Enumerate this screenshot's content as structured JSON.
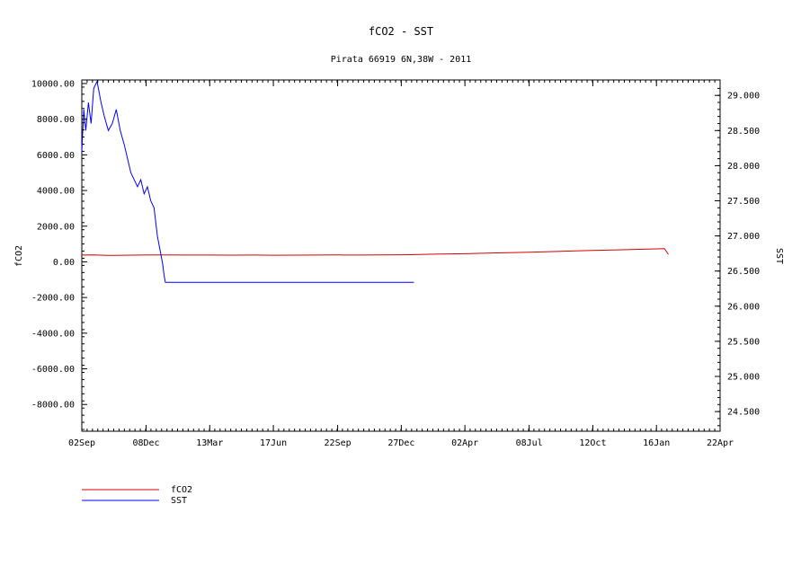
{
  "chart_data": {
    "type": "line",
    "title": "fCO2 - SST",
    "subtitle": "Pirata 66919 6N,38W - 2011",
    "xlabel": "",
    "ylabel_left": "fCO2",
    "ylabel_right": "SST",
    "x_tick_labels": [
      "02Sep",
      "08Dec",
      "13Mar",
      "17Jun",
      "22Sep",
      "27Dec",
      "02Apr",
      "08Jul",
      "12Oct",
      "16Jan",
      "22Apr"
    ],
    "x_tick_dates": [
      "2011-09-02",
      "2011-12-08",
      "2012-03-13",
      "2012-06-17",
      "2012-09-22",
      "2012-12-27",
      "2013-04-02",
      "2013-07-08",
      "2013-10-12",
      "2014-01-16",
      "2014-04-22"
    ],
    "xlim": [
      "2011-09-02",
      "2014-04-22"
    ],
    "ylim_left": [
      -9500,
      10200
    ],
    "yticks_left": [
      10000,
      8000,
      6000,
      4000,
      2000,
      0,
      -2000,
      -4000,
      -6000,
      -8000
    ],
    "ytick_labels_left": [
      "10000.00",
      "8000.00",
      "6000.00",
      "4000.00",
      "2000.00",
      "0.00",
      "-2000.00",
      "-4000.00",
      "-6000.00",
      "-8000.00"
    ],
    "ylim_right": [
      24.22,
      29.22
    ],
    "yticks_right": [
      29.0,
      28.5,
      28.0,
      27.5,
      27.0,
      26.5,
      26.0,
      25.5,
      25.0,
      24.5
    ],
    "ytick_labels_right": [
      "29.000",
      "28.500",
      "28.000",
      "27.500",
      "27.000",
      "26.500",
      "26.000",
      "25.500",
      "25.000",
      "24.500"
    ],
    "grid": false,
    "legend_position": "bottom-left",
    "series": [
      {
        "name": "fCO2",
        "axis": "left",
        "color": "#d40000",
        "x": [
          "2011-09-02",
          "2011-09-20",
          "2011-10-10",
          "2011-11-01",
          "2011-12-01",
          "2012-01-01",
          "2012-02-01",
          "2012-03-13",
          "2012-04-15",
          "2012-05-20",
          "2012-06-17",
          "2012-07-20",
          "2012-08-20",
          "2012-09-22",
          "2012-10-25",
          "2012-11-25",
          "2012-12-27",
          "2013-01-10",
          "2013-02-15",
          "2013-04-02",
          "2013-05-20",
          "2013-07-08",
          "2013-08-25",
          "2013-10-12",
          "2013-11-25",
          "2014-01-16",
          "2014-01-28",
          "2014-02-03"
        ],
        "y": [
          380,
          390,
          360,
          370,
          380,
          385,
          380,
          380,
          375,
          380,
          370,
          375,
          380,
          385,
          380,
          390,
          395,
          400,
          430,
          460,
          500,
          540,
          590,
          640,
          680,
          730,
          740,
          420
        ]
      },
      {
        "name": "SST",
        "axis": "right",
        "color": "#0000ff",
        "x": [
          "2011-09-02",
          "2011-09-05",
          "2011-09-08",
          "2011-09-12",
          "2011-09-16",
          "2011-09-20",
          "2011-09-25",
          "2011-10-01",
          "2011-10-06",
          "2011-10-12",
          "2011-10-18",
          "2011-10-24",
          "2011-10-30",
          "2011-11-05",
          "2011-11-10",
          "2011-11-15",
          "2011-11-20",
          "2011-11-25",
          "2011-11-30",
          "2011-12-05",
          "2011-12-10",
          "2011-12-15",
          "2011-12-20",
          "2011-12-25",
          "2011-12-29",
          "2012-01-02",
          "2012-01-04",
          "2012-01-06",
          "2012-02-01",
          "2012-04-01",
          "2012-06-01",
          "2012-08-01",
          "2012-10-01",
          "2012-12-01",
          "2013-01-15"
        ],
        "y": [
          28.2,
          28.8,
          28.5,
          28.9,
          28.6,
          29.1,
          29.2,
          28.9,
          28.7,
          28.5,
          28.6,
          28.8,
          28.5,
          28.3,
          28.1,
          27.9,
          27.8,
          27.7,
          27.8,
          27.6,
          27.7,
          27.5,
          27.4,
          27.0,
          26.8,
          26.6,
          26.45,
          26.34,
          26.34,
          26.34,
          26.34,
          26.34,
          26.34,
          26.34,
          26.34
        ]
      }
    ]
  }
}
